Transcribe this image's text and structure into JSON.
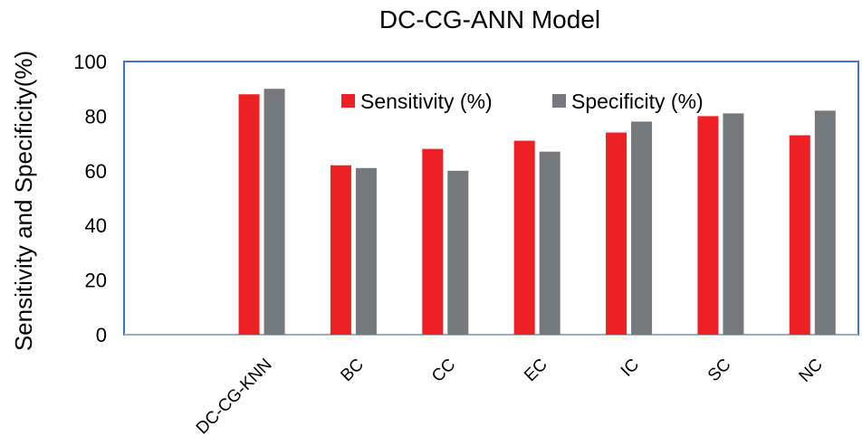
{
  "chart_data": {
    "type": "bar",
    "title": "DC-CG-ANN Model",
    "xlabel": "",
    "ylabel": "Sensitivity and Specificity(%)",
    "ylim": [
      0,
      100
    ],
    "yticks": [
      0,
      20,
      40,
      60,
      80,
      100
    ],
    "categories": [
      "",
      "DC-CG-KNN",
      "BC",
      "CC",
      "EC",
      "IC",
      "SC",
      "NC"
    ],
    "series": [
      {
        "name": "Sensitivity (%)",
        "color": "#ed2024",
        "values": [
          null,
          88,
          62,
          68,
          71,
          74,
          80,
          73
        ]
      },
      {
        "name": "Specificity (%)",
        "color": "#77787b",
        "values": [
          null,
          90,
          61,
          60,
          67,
          78,
          81,
          82
        ]
      }
    ],
    "frame_color": "#4472c4",
    "legend_position": "top-right",
    "grid": false
  }
}
